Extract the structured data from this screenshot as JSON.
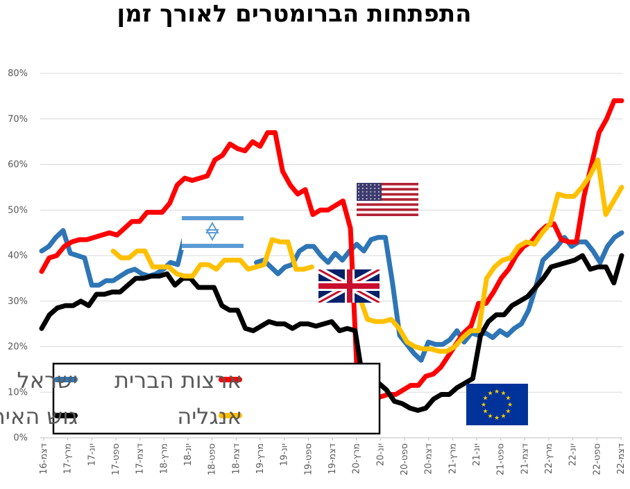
{
  "chart_data": {
    "type": "line",
    "title": "התפתחות הברומטרים לאורך זמן",
    "xlabel": "",
    "ylabel": "",
    "ylim": [
      0,
      80
    ],
    "yticks": [
      "0%",
      "10%",
      "20%",
      "30%",
      "40%",
      "50%",
      "60%",
      "70%",
      "80%"
    ],
    "grid": true,
    "legend_position": "bottom-left",
    "x_tick_labels": [
      "דצמ-16",
      "מרץ-17",
      "יונ-17",
      "ספט-17",
      "דצמ-17",
      "מרץ-18",
      "יונ-18",
      "ספט-18",
      "דצמ-18",
      "מרץ-19",
      "יונ-19",
      "ספט-19",
      "דצמ-19",
      "מרץ-20",
      "יונ-20",
      "ספט-20",
      "דצמ-20",
      "מרץ-21",
      "יונ-21",
      "ספט-21",
      "דצמ-21",
      "מרץ-22",
      "יונ-22",
      "ספט-22",
      "דצמ-22"
    ],
    "series": [
      {
        "name": "ישראל",
        "color": "#2E75B6",
        "flag": "israel-flag",
        "values": [
          41,
          42,
          44,
          45.5,
          40.5,
          40,
          39.5,
          33.5,
          33.5,
          34.5,
          34.5,
          35.5,
          36.5,
          37,
          36,
          35.5,
          36,
          37,
          38.5,
          38,
          44.5,
          null,
          null,
          null,
          null,
          null,
          null,
          null,
          null,
          null,
          38.5,
          39,
          37.5,
          36,
          37.5,
          38,
          41,
          42,
          42,
          40,
          38.5,
          40.5,
          39,
          41,
          42.5,
          41,
          43.5,
          44,
          44,
          34,
          22.5,
          20.5,
          18.5,
          17,
          21,
          20.5,
          20.5,
          21.5,
          23.5,
          21,
          23,
          22.5,
          23,
          22,
          23.5,
          22.5,
          24,
          25,
          28,
          33,
          39,
          40.5,
          42,
          44,
          42,
          43,
          43,
          41,
          38.5,
          42,
          44,
          45
        ]
      },
      {
        "name": "ארצות הברית",
        "color": "#FF0000",
        "flag": "usa-flag",
        "values": [
          36.5,
          39.5,
          40,
          42,
          43,
          43.5,
          43.5,
          44,
          44.5,
          45,
          44.5,
          46,
          47.5,
          47.5,
          49.5,
          49.5,
          49.5,
          51.5,
          55.5,
          57,
          56.5,
          57,
          57.5,
          61,
          62,
          64.5,
          63.5,
          63,
          65,
          64,
          67,
          67,
          58.5,
          55.5,
          53.5,
          54.5,
          49,
          50,
          50,
          51,
          52,
          46,
          9.5,
          9,
          8.5,
          9,
          9.5,
          9.5,
          10.5,
          11.5,
          11.5,
          13.5,
          14,
          15.5,
          18,
          20.5,
          23,
          24.5,
          29.5,
          29.5,
          32,
          35,
          37,
          40,
          42,
          43,
          45,
          46.5,
          47,
          43.5,
          43,
          43,
          53,
          60,
          67,
          70,
          74,
          74
        ]
      },
      {
        "name": "גוש האירו",
        "color": "#000000",
        "flag": "eu-flag",
        "values": [
          24,
          27,
          28.5,
          29,
          29,
          30,
          29,
          31.5,
          31.5,
          32,
          32,
          33.5,
          35,
          35,
          35.5,
          35.5,
          36,
          33.5,
          35,
          35,
          33,
          33,
          33,
          29,
          28,
          28,
          24,
          23.5,
          24.5,
          25.5,
          25,
          25,
          24,
          25,
          25,
          24.5,
          25,
          25.5,
          23.5,
          24,
          23.5,
          12.5,
          12,
          12,
          10.5,
          8,
          7.5,
          6.5,
          6,
          6.5,
          8.5,
          9.5,
          9.5,
          11,
          12,
          13,
          22.5,
          25.5,
          27,
          27,
          29,
          30,
          31,
          33,
          35,
          37.5,
          38,
          38.5,
          39,
          40,
          37,
          37.5,
          37.5,
          34,
          40
        ]
      },
      {
        "name": "אנגליה",
        "color": "#FFC000",
        "flag": "uk-flag",
        "values": [
          null,
          null,
          null,
          null,
          null,
          null,
          null,
          null,
          null,
          41,
          39.5,
          39.5,
          41,
          41,
          37.5,
          37.5,
          37.5,
          36,
          35.5,
          35.5,
          38,
          38,
          37,
          39,
          39,
          39,
          37,
          37.5,
          38,
          43.5,
          43,
          43,
          37,
          37,
          37.5,
          null,
          null,
          null,
          null,
          null,
          31,
          26,
          25.5,
          25.5,
          26,
          24,
          21,
          20,
          19.5,
          19.5,
          19,
          19,
          20,
          22,
          23.5,
          23.5,
          35,
          37.5,
          39,
          39.5,
          42,
          43,
          42.5,
          45,
          47,
          53.5,
          53,
          53,
          55,
          57.5,
          61,
          49,
          52,
          55
        ]
      }
    ]
  },
  "legend": {
    "israel": "ישראל",
    "usa": "ארצות הברית",
    "eurozone": "גוש האירו",
    "uk": "אנגליה"
  },
  "flags": [
    "israel-flag",
    "usa-flag",
    "uk-flag",
    "eu-flag"
  ]
}
